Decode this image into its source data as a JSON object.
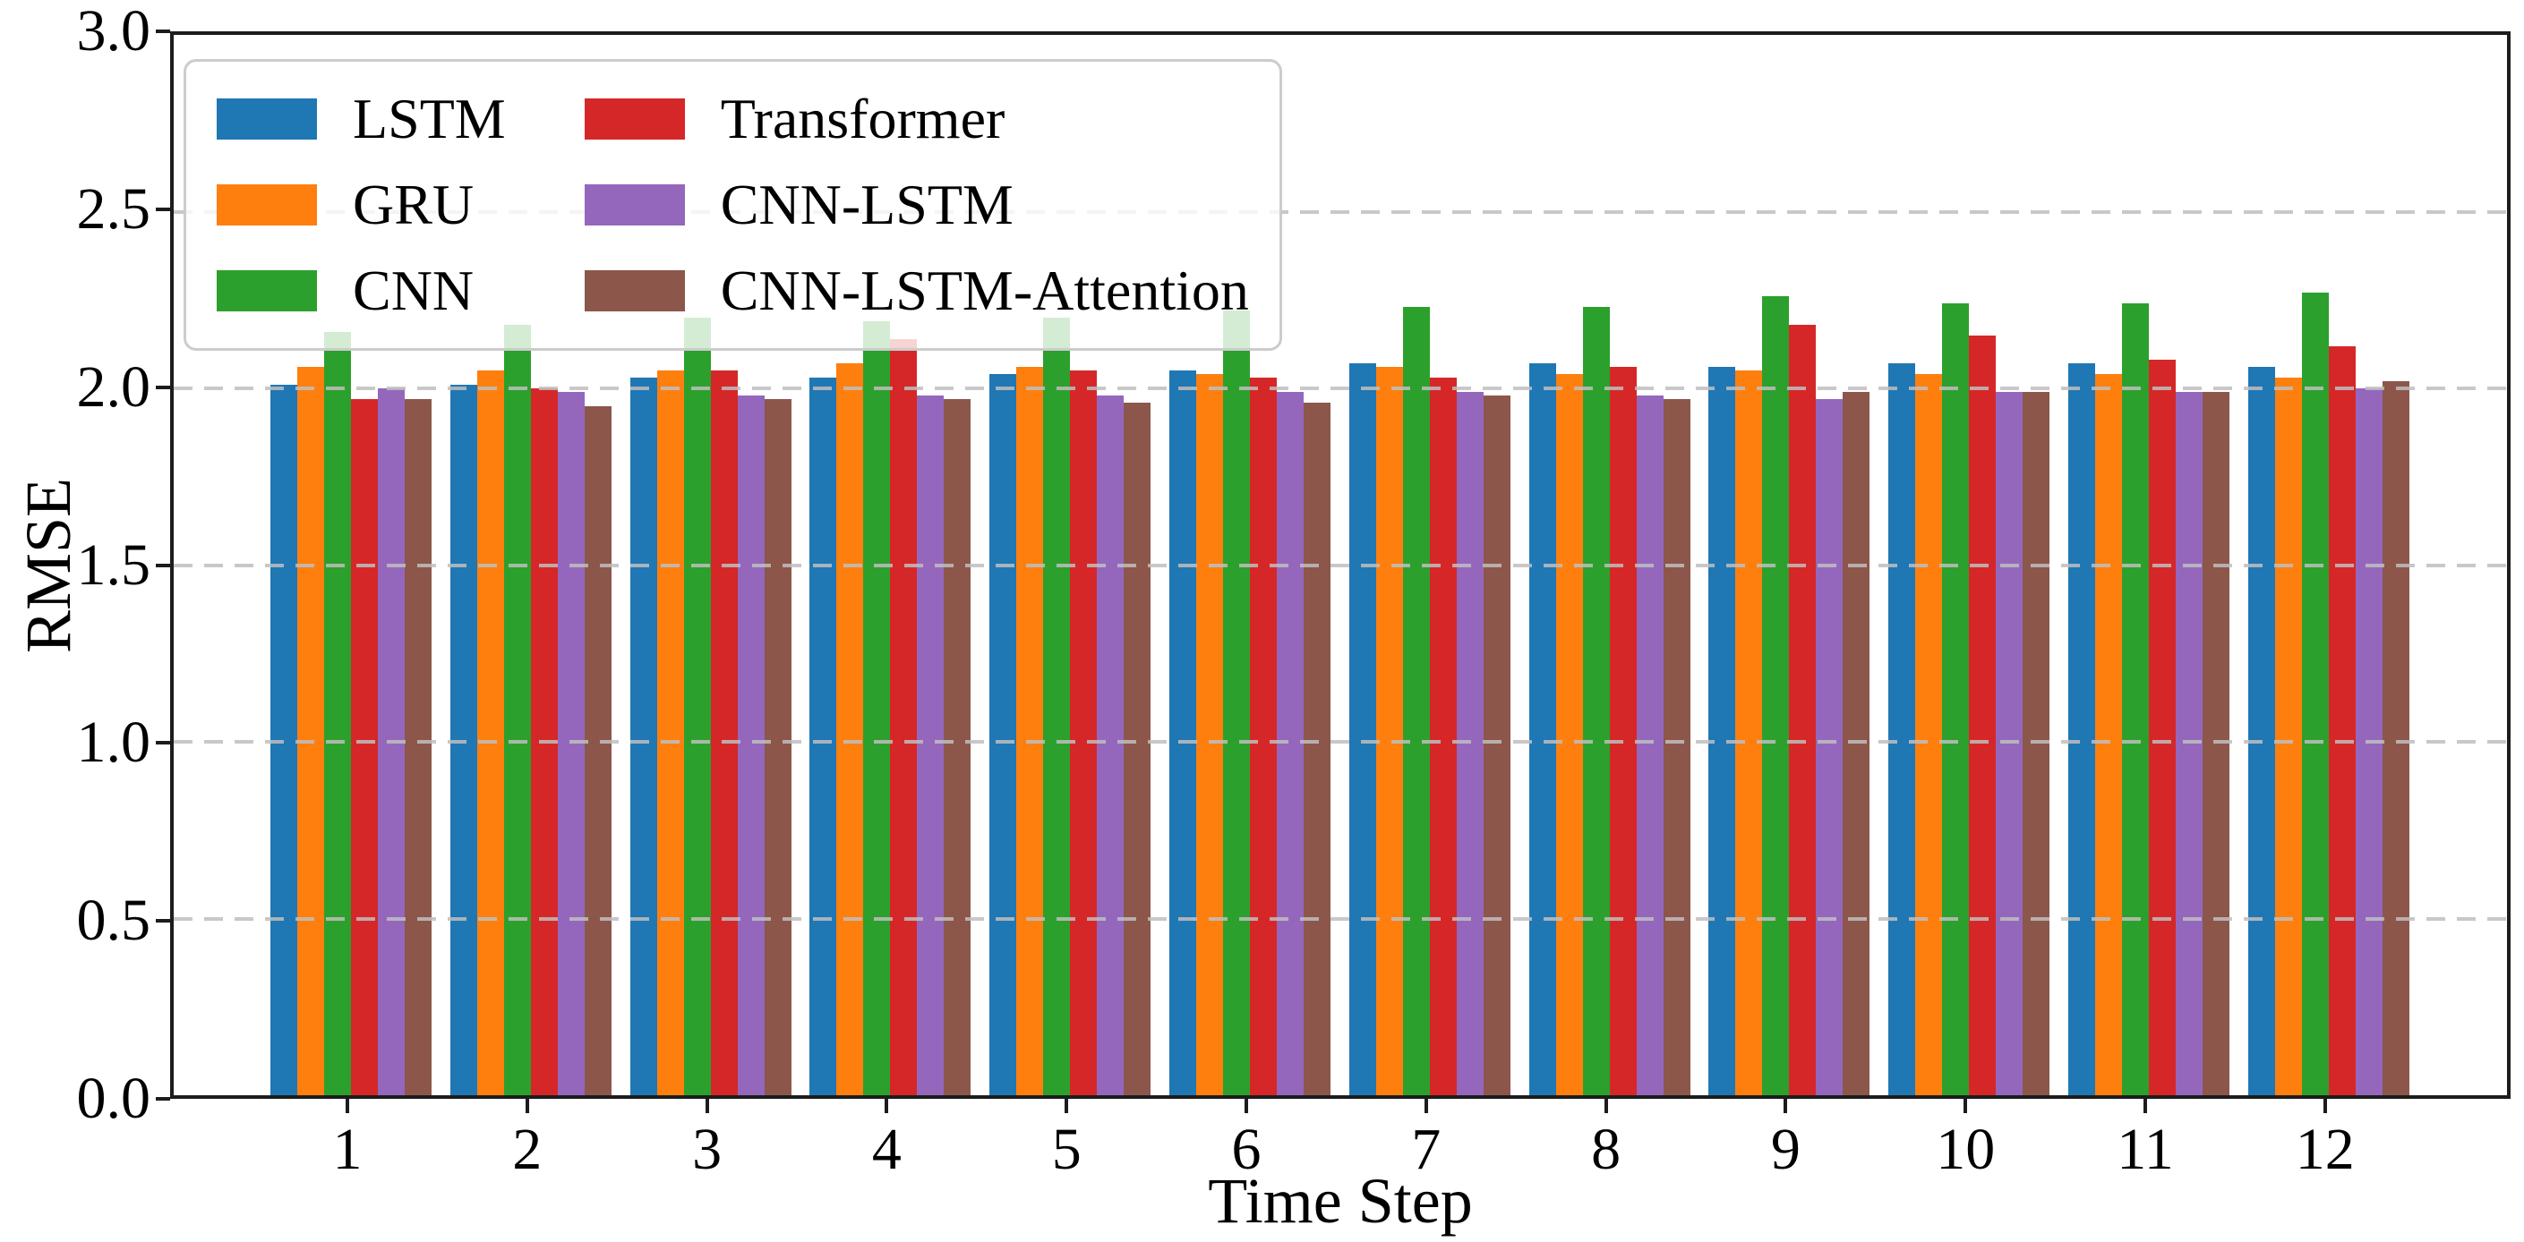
{
  "figure": {
    "background_color": "#ffffff",
    "spine_color": "#1c1c1c",
    "gridline_color": "#bfbfbf"
  },
  "chart_data": {
    "type": "bar",
    "title": "",
    "xlabel": "Time Step",
    "ylabel": "RMSE",
    "ylim": [
      0.0,
      3.0
    ],
    "yticks": [
      "0.0",
      "0.5",
      "1.0",
      "1.5",
      "2.0",
      "2.5",
      "3.0"
    ],
    "grid": "horizontal dashed, drawn above bars",
    "legend_position": "upper left, 2 columns",
    "categories": [
      "1",
      "2",
      "3",
      "4",
      "5",
      "6",
      "7",
      "8",
      "9",
      "10",
      "11",
      "12"
    ],
    "series": [
      {
        "name": "LSTM",
        "color": "#1f77b4",
        "values": [
          2.01,
          2.01,
          2.03,
          2.03,
          2.04,
          2.05,
          2.07,
          2.07,
          2.06,
          2.07,
          2.07,
          2.06
        ]
      },
      {
        "name": "GRU",
        "color": "#ff7f0e",
        "values": [
          2.06,
          2.05,
          2.05,
          2.07,
          2.06,
          2.04,
          2.06,
          2.04,
          2.05,
          2.04,
          2.04,
          2.03
        ]
      },
      {
        "name": "CNN",
        "color": "#2ca02c",
        "values": [
          2.16,
          2.18,
          2.2,
          2.19,
          2.2,
          2.22,
          2.23,
          2.23,
          2.26,
          2.24,
          2.24,
          2.27
        ]
      },
      {
        "name": "Transformer",
        "color": "#d62728",
        "values": [
          1.97,
          2.0,
          2.05,
          2.14,
          2.05,
          2.03,
          2.03,
          2.06,
          2.18,
          2.15,
          2.08,
          2.12
        ]
      },
      {
        "name": "CNN-LSTM",
        "color": "#9467bd",
        "values": [
          2.0,
          1.99,
          1.98,
          1.98,
          1.98,
          1.99,
          1.99,
          1.98,
          1.97,
          1.99,
          1.99,
          2.0
        ]
      },
      {
        "name": "CNN-LSTM-Attention",
        "color": "#8c564b",
        "values": [
          1.97,
          1.95,
          1.97,
          1.97,
          1.96,
          1.96,
          1.98,
          1.97,
          1.99,
          1.99,
          1.99,
          2.02
        ]
      }
    ]
  }
}
